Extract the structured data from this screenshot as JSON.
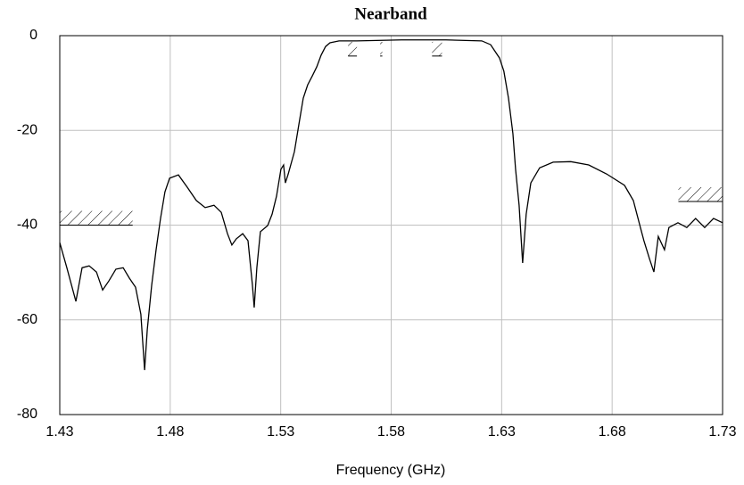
{
  "chart_data": {
    "type": "line",
    "title": "Nearband",
    "x_label": "Frequency (GHz)",
    "x": [
      1.43,
      1.4332,
      1.4373,
      1.4401,
      1.4433,
      1.4466,
      1.4494,
      1.4522,
      1.4554,
      1.4587,
      1.4615,
      1.4643,
      1.4667,
      1.4684,
      1.4696,
      1.4716,
      1.4736,
      1.4756,
      1.4776,
      1.4797,
      1.4837,
      1.4877,
      1.4918,
      1.4958,
      1.4998,
      1.5031,
      1.5059,
      1.5079,
      1.5099,
      1.5128,
      1.5152,
      1.5172,
      1.518,
      1.5192,
      1.5208,
      1.5241,
      1.5261,
      1.5281,
      1.5301,
      1.5313,
      1.5321,
      1.5334,
      1.5362,
      1.5382,
      1.5402,
      1.5422,
      1.5443,
      1.5463,
      1.5483,
      1.5503,
      1.5523,
      1.5564,
      1.5644,
      1.5846,
      1.6048,
      1.621,
      1.625,
      1.629,
      1.631,
      1.6331,
      1.6351,
      1.6363,
      1.6379,
      1.6395,
      1.6411,
      1.6432,
      1.6472,
      1.6533,
      1.6613,
      1.6694,
      1.6775,
      1.6856,
      1.6896,
      1.6928,
      1.6944,
      1.6969,
      1.6989,
      1.7009,
      1.7037,
      1.7057,
      1.7098,
      1.7138,
      1.7178,
      1.7219,
      1.7259,
      1.73
    ],
    "series": [
      {
        "color": "#000000",
        "values": [
          -43.7,
          -49,
          -56.1,
          -49,
          -48.6,
          -49.9,
          -53.7,
          -51.8,
          -49.3,
          -49,
          -51.2,
          -53.1,
          -58.8,
          -70.6,
          -62.1,
          -52.7,
          -45.2,
          -38.6,
          -33,
          -30.1,
          -29.4,
          -32,
          -34.8,
          -36.3,
          -35.8,
          -37.3,
          -41.8,
          -44.2,
          -42.9,
          -41.8,
          -43.3,
          -52.7,
          -57.4,
          -49,
          -41.4,
          -40.1,
          -37.7,
          -33.9,
          -28.2,
          -27.3,
          -31.1,
          -29.2,
          -24.5,
          -18.8,
          -13.2,
          -10.4,
          -8.5,
          -6.6,
          -4.1,
          -2.3,
          -1.5,
          -1.1,
          -1.1,
          -0.9,
          -0.9,
          -1.1,
          -1.9,
          -4.7,
          -7.5,
          -13.2,
          -20.7,
          -28.2,
          -35.8,
          -48,
          -37.7,
          -31.1,
          -27.9,
          -26.7,
          -26.6,
          -27.3,
          -29.2,
          -31.6,
          -34.8,
          -40.5,
          -43.3,
          -47.1,
          -49.9,
          -42.4,
          -45.2,
          -40.5,
          -39.5,
          -40.5,
          -38.6,
          -40.5,
          -38.6,
          -39.5
        ]
      }
    ],
    "limits": [
      {
        "x": [
          1.43,
          1.463
        ],
        "y": -40
      },
      {
        "x": [
          1.71,
          1.73
        ],
        "y": -35
      },
      {
        "x": [
          1.5605,
          1.5645
        ],
        "y": -4.3
      },
      {
        "x": [
          1.575,
          1.576
        ],
        "y": -4.3
      },
      {
        "x": [
          1.5985,
          1.603
        ],
        "y": -4.3
      }
    ],
    "xlim": [
      1.43,
      1.73
    ],
    "xticks": [
      1.43,
      1.48,
      1.53,
      1.58,
      1.63,
      1.68,
      1.73
    ],
    "ylim": [
      -80,
      0
    ],
    "yticks": [
      0,
      -20,
      -40,
      -60,
      -80
    ],
    "grid": true
  }
}
